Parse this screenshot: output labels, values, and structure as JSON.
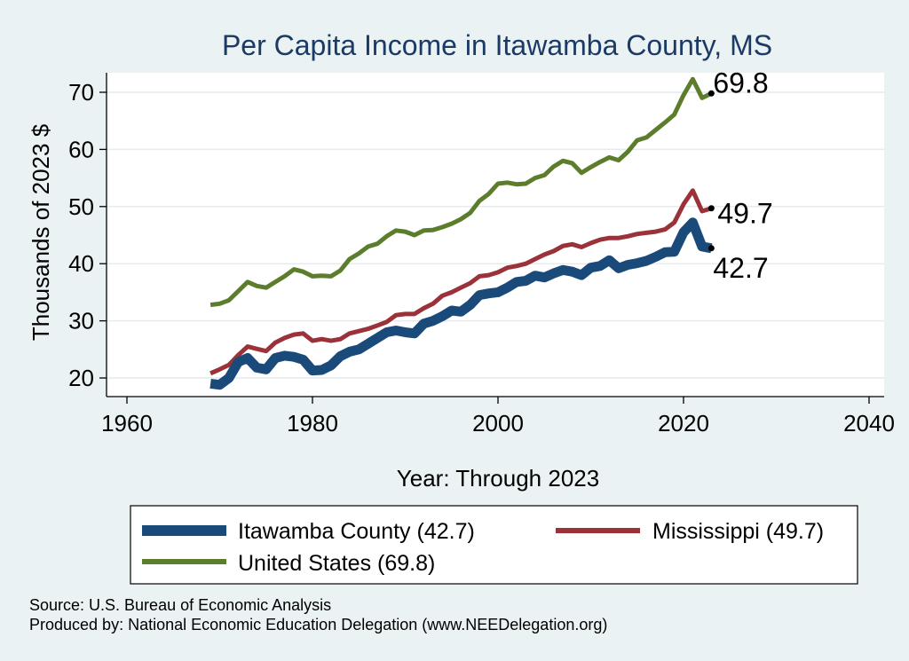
{
  "chart_data": {
    "type": "line",
    "title": "Per Capita Income in Itawamba County, MS",
    "xlabel": "Year: Through 2023",
    "ylabel": "Thousands of 2023 $",
    "xlim": [
      1960,
      2040
    ],
    "ylim": [
      20,
      74
    ],
    "xticks": [
      1960,
      1980,
      2000,
      2020,
      2040
    ],
    "yticks": [
      20,
      30,
      40,
      50,
      60,
      70
    ],
    "grid": true,
    "legend_position": "bottom",
    "x": [
      1969,
      1970,
      1971,
      1972,
      1973,
      1974,
      1975,
      1976,
      1977,
      1978,
      1979,
      1980,
      1981,
      1982,
      1983,
      1984,
      1985,
      1986,
      1987,
      1988,
      1989,
      1990,
      1991,
      1992,
      1993,
      1994,
      1995,
      1996,
      1997,
      1998,
      1999,
      2000,
      2001,
      2002,
      2003,
      2004,
      2005,
      2006,
      2007,
      2008,
      2009,
      2010,
      2011,
      2012,
      2013,
      2014,
      2015,
      2016,
      2017,
      2018,
      2019,
      2020,
      2021,
      2022,
      2023
    ],
    "series": [
      {
        "name": "Itawamba County (42.7)",
        "color": "#1a4a7a",
        "values": [
          19.0,
          18.8,
          20.0,
          22.8,
          23.5,
          21.8,
          21.5,
          23.5,
          23.9,
          23.7,
          23.2,
          21.3,
          21.4,
          22.2,
          23.8,
          24.6,
          25.0,
          26.0,
          27.0,
          28.0,
          28.3,
          28.0,
          27.8,
          29.5,
          30.0,
          30.8,
          31.8,
          31.6,
          32.8,
          34.5,
          34.8,
          35.0,
          35.8,
          36.8,
          37.0,
          37.9,
          37.6,
          38.3,
          38.9,
          38.6,
          38.0,
          39.3,
          39.6,
          40.6,
          39.2,
          39.8,
          40.1,
          40.5,
          41.2,
          42.0,
          42.1,
          45.5,
          47.2,
          43.0,
          42.7
        ]
      },
      {
        "name": "Mississippi (49.7)",
        "color": "#9c3239",
        "values": [
          20.8,
          21.5,
          22.3,
          24.0,
          25.5,
          25.1,
          24.7,
          26.2,
          27.0,
          27.6,
          27.8,
          26.5,
          26.8,
          26.5,
          26.8,
          27.8,
          28.2,
          28.6,
          29.2,
          29.8,
          31.0,
          31.2,
          31.2,
          32.2,
          33.0,
          34.4,
          35.0,
          35.8,
          36.6,
          37.8,
          38.0,
          38.5,
          39.3,
          39.6,
          40.0,
          40.8,
          41.6,
          42.2,
          43.1,
          43.4,
          42.9,
          43.6,
          44.2,
          44.5,
          44.5,
          44.8,
          45.2,
          45.4,
          45.6,
          46.0,
          47.2,
          50.4,
          52.8,
          49.2,
          49.7
        ]
      },
      {
        "name": "United States (69.8)",
        "color": "#5c7e2c",
        "values": [
          32.8,
          33.0,
          33.6,
          35.2,
          36.8,
          36.1,
          35.8,
          36.8,
          37.8,
          39.0,
          38.6,
          37.8,
          37.9,
          37.8,
          38.8,
          40.8,
          41.8,
          43.0,
          43.5,
          44.8,
          45.8,
          45.6,
          45.0,
          45.8,
          45.9,
          46.4,
          47.0,
          47.8,
          48.9,
          51.0,
          52.2,
          54.0,
          54.2,
          53.9,
          54.0,
          55.0,
          55.5,
          57.0,
          58.0,
          57.6,
          55.9,
          56.9,
          57.8,
          58.6,
          58.1,
          59.6,
          61.6,
          62.1,
          63.4,
          64.7,
          66.1,
          69.5,
          72.3,
          69.0,
          69.8
        ]
      }
    ],
    "end_labels": [
      "42.7",
      "49.7",
      "69.8"
    ]
  },
  "legend": {
    "items": [
      "Itawamba County (42.7)",
      "Mississippi (49.7)",
      "United States (69.8)"
    ]
  },
  "footer": {
    "source": "Source: U.S. Bureau of Economic Analysis",
    "produced_by": "Produced by: National Economic Education Delegation (www.NEEDelegation.org)"
  }
}
